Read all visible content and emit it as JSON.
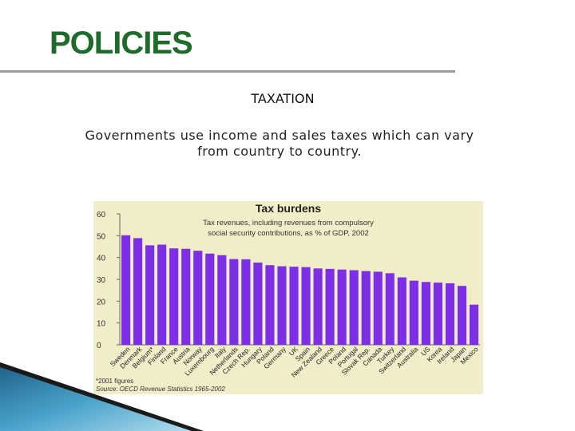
{
  "slide": {
    "title": "POLICIES",
    "subtitle": "TAXATION",
    "body": "Governments use income and sales taxes which can vary from country to country."
  },
  "colors": {
    "title": "#1e6b2a",
    "bar": "#7c2fe6",
    "panel": "#f0edc8"
  },
  "chart_data": {
    "type": "bar",
    "title": "Tax burdens",
    "subtitle_lines": [
      "Tax revenues, including revenues from compulsory",
      "social security contributions, as % of GDP, 2002"
    ],
    "categories": [
      "Sweden",
      "Denmark",
      "Belgium*",
      "Finland",
      "France",
      "Austria",
      "Norway",
      "Luxembourg",
      "Italy",
      "Netherlands",
      "Czech Rep.",
      "Hungary",
      "Poland",
      "Germany",
      "UK",
      "Spain",
      "New Zealand",
      "Greece",
      "Poland",
      "Portugal",
      "Slovak Rep.",
      "Canada",
      "Turkey",
      "Switzerland",
      "Australia",
      "US",
      "Korea",
      "Ireland",
      "Japan",
      "Mexico"
    ],
    "values": [
      50.2,
      48.9,
      45.6,
      45.9,
      44.2,
      44.0,
      43.1,
      41.8,
      41.1,
      39.3,
      39.2,
      37.7,
      36.5,
      36.0,
      35.8,
      35.6,
      35.0,
      34.8,
      34.5,
      34.2,
      33.8,
      33.5,
      32.8,
      30.9,
      29.4,
      28.8,
      28.5,
      28.2,
      27.0,
      18.4
    ],
    "yticks": [
      0,
      10,
      20,
      30,
      40,
      50,
      60
    ],
    "ylim": [
      0,
      60
    ],
    "grid": false,
    "footnote": "*2001 figures",
    "source": "Source: OECD Revenue Statistics 1965-2002"
  }
}
